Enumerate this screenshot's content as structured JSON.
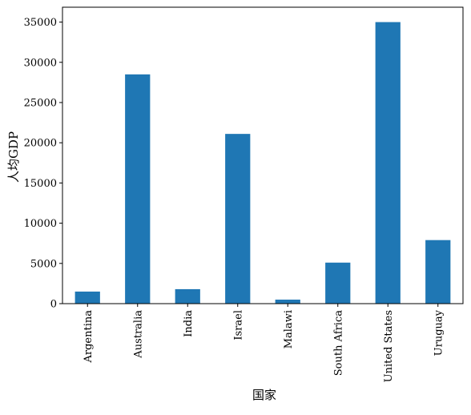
{
  "chart_data": {
    "type": "bar",
    "x_label": "国家",
    "y_label": "人均GDP",
    "categories": [
      "Argentina",
      "Australia",
      "India",
      "Israel",
      "Malawi",
      "South Africa",
      "United States",
      "Uruguay"
    ],
    "values": [
      1500,
      28500,
      1800,
      21100,
      500,
      5100,
      35000,
      7900
    ],
    "color": "#1f77b4",
    "ylim": [
      0,
      36850
    ],
    "yticks": [
      0,
      5000,
      10000,
      15000,
      20000,
      25000,
      30000,
      35000
    ]
  }
}
